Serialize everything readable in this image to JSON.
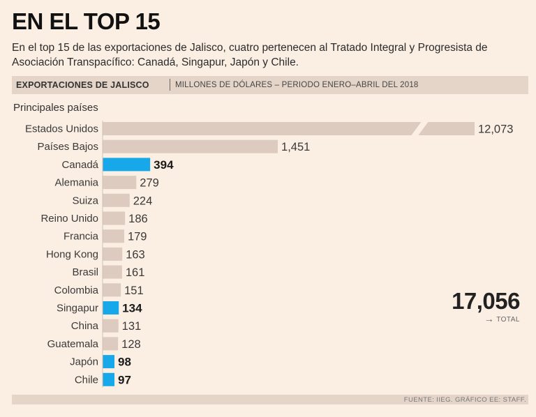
{
  "header": {
    "title": "EN EL TOP 15",
    "subtitle": "En el top 15 de las exportaciones de Jalisco, cuatro pertenecen al Tratado Integral y Progresista de Asociación Transpacífico: Canadá, Singapur, Japón y Chile.",
    "strip_bold": "EXPORTACIONES DE JALISCO",
    "strip_light": "MILLONES DE DÓLARES – PERIODO ENERO–ABRIL DEL 2018",
    "section_label": "Principales países"
  },
  "total": {
    "value": "17,056",
    "label": "TOTAL"
  },
  "footer": {
    "source": "FUENTE: IIEG. GRÁFICO EE: STAFF."
  },
  "colors": {
    "default_bar": "#dccbbe",
    "highlight_bar": "#16a8e8"
  },
  "chart_data": {
    "type": "bar",
    "orientation": "horizontal",
    "title": "EXPORTACIONES DE JALISCO",
    "units": "Millones de dólares",
    "axis_break": true,
    "categories": [
      "Estados Unidos",
      "Países Bajos",
      "Canadá",
      "Alemania",
      "Suiza",
      "Reino Unido",
      "Francia",
      "Hong Kong",
      "Brasil",
      "Colombia",
      "Singapur",
      "China",
      "Guatemala",
      "Japón",
      "Chile"
    ],
    "values": [
      12073,
      1451,
      394,
      279,
      224,
      186,
      179,
      163,
      161,
      151,
      134,
      131,
      128,
      98,
      97
    ],
    "labels": [
      "12,073",
      "1,451",
      "394",
      "279",
      "224",
      "186",
      "179",
      "163",
      "161",
      "151",
      "134",
      "131",
      "128",
      "98",
      "97"
    ],
    "highlighted": [
      "Canadá",
      "Singapur",
      "Japón",
      "Chile"
    ]
  }
}
